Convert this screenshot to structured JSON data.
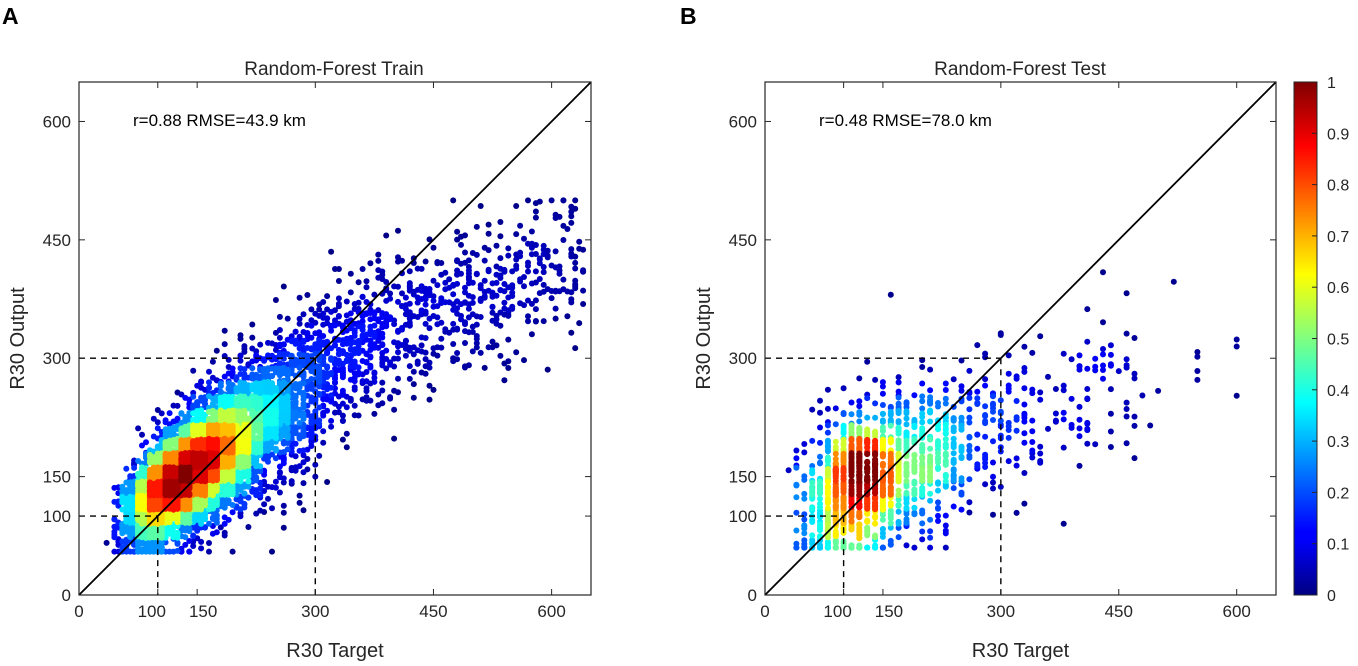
{
  "chart_data": [
    {
      "type": "scatter",
      "panel_label": "A",
      "title": "Random-Forest Train",
      "xlabel": "R30 Target",
      "ylabel": "R30 Output",
      "xlim": [
        0,
        650
      ],
      "ylim": [
        0,
        650
      ],
      "xticks": [
        0,
        100,
        150,
        300,
        450,
        600
      ],
      "yticks": [
        0,
        100,
        150,
        300,
        450,
        600
      ],
      "xtick_labels": [
        "0",
        "100",
        "150",
        "300",
        "450",
        "600"
      ],
      "ytick_labels": [
        "0",
        "100",
        "150",
        "300",
        "450",
        "600"
      ],
      "annotation": "r=0.88 RMSE=43.9 km",
      "reference_line": "y = x",
      "dashed_guides": [
        100,
        300
      ],
      "color_encoding": "normalized point density",
      "density_center": [
        160,
        170
      ],
      "n_points_approx": 6000
    },
    {
      "type": "scatter",
      "panel_label": "B",
      "title": "Random-Forest Test",
      "xlabel": "R30 Target",
      "ylabel": "R30 Output",
      "xlim": [
        0,
        650
      ],
      "ylim": [
        0,
        650
      ],
      "xticks": [
        0,
        100,
        150,
        300,
        450,
        600
      ],
      "yticks": [
        0,
        100,
        150,
        300,
        450,
        600
      ],
      "xtick_labels": [
        "0",
        "100",
        "150",
        "300",
        "450",
        "600"
      ],
      "ytick_labels": [
        "0",
        "100",
        "150",
        "300",
        "450",
        "600"
      ],
      "annotation": "r=0.48 RMSE=78.0 km",
      "reference_line": "y = x",
      "dashed_guides": [
        100,
        300
      ],
      "color_encoding": "normalized point density",
      "density_center": [
        140,
        150
      ],
      "n_points_approx": 1500
    }
  ],
  "colorbar": {
    "colormap": "jet",
    "range": [
      0,
      1
    ],
    "ticks": [
      0,
      0.1,
      0.2,
      0.3,
      0.4,
      0.5,
      0.6,
      0.7,
      0.8,
      0.9,
      1
    ],
    "tick_labels": [
      "0",
      "0.1",
      "0.2",
      "0.3",
      "0.4",
      "0.5",
      "0.6",
      "0.7",
      "0.8",
      "0.9",
      "1"
    ]
  }
}
